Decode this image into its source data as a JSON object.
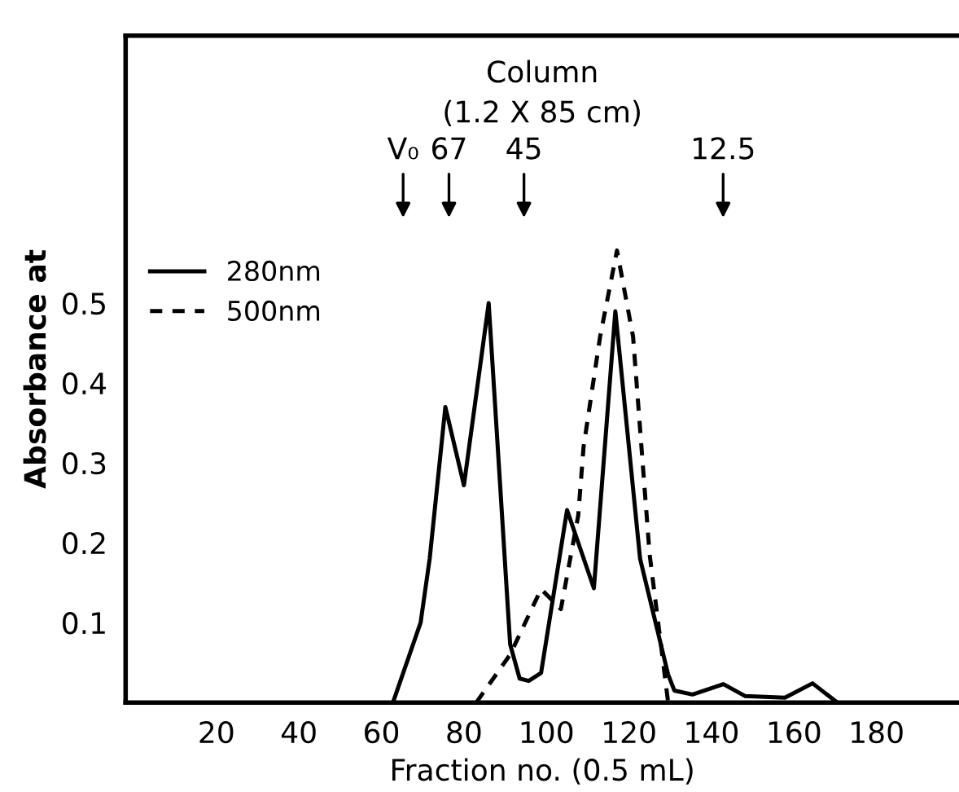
{
  "chart_data": {
    "type": "line",
    "title": "Column",
    "subtitle": "(1.2 X 85 cm)",
    "xlabel": "Fraction no. (0.5 mL)",
    "ylabel": "Absorbance at",
    "xlim": [
      -2,
      200
    ],
    "ylim": [
      0,
      0.835
    ],
    "xticks": [
      20,
      40,
      60,
      80,
      100,
      120,
      140,
      160,
      180
    ],
    "yticks": [
      0.1,
      0.2,
      0.3,
      0.4,
      0.5
    ],
    "grid": false,
    "legend": "top left",
    "marker": "none",
    "series": [
      {
        "name": "280nm",
        "color": "#000000",
        "line_style": "solid",
        "x": [
          62.8,
          69.5,
          71.7,
          75.5,
          80.0,
          86.0,
          91.2,
          93.5,
          95.7,
          98.7,
          105.0,
          111.5,
          116.7,
          122.7,
          129.5,
          131,
          135.4,
          142.9,
          148.2,
          157.8,
          164.5,
          170.5
        ],
        "values": [
          0,
          0.1,
          0.18,
          0.37,
          0.272,
          0.5,
          0.073,
          0.03,
          0.027,
          0.037,
          0.241,
          0.143,
          0.49,
          0.18,
          0.035,
          0.015,
          0.01,
          0.023,
          0.008,
          0.006,
          0.024,
          0
        ]
      },
      {
        "name": "500nm",
        "color": "#000000",
        "line_style": "dashed",
        "x": [
          83,
          91.2,
          98.7,
          103.5,
          107.7,
          109,
          113,
          117.1,
          121,
          125,
          129.5
        ],
        "values": [
          0,
          0.06,
          0.142,
          0.117,
          0.234,
          0.32,
          0.458,
          0.566,
          0.458,
          0.186,
          0
        ]
      }
    ],
    "annotations": [
      "V₀",
      "67",
      "45",
      "12.5"
    ]
  }
}
